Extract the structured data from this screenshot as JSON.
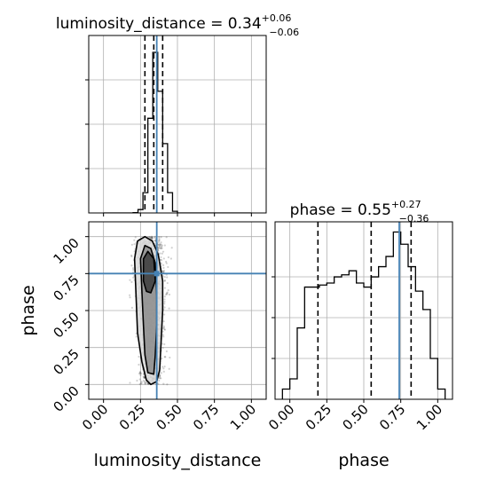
{
  "chart_data": [
    {
      "panel": "luminosity_distance-marginal",
      "type": "histogram",
      "title_param": "luminosity_distance",
      "title_value": "0.34",
      "title_plus": "+0.06",
      "title_minus": "−0.06",
      "xlim": [
        -0.1,
        1.1
      ],
      "bin_edges": [
        0.0,
        0.0333,
        0.0667,
        0.1,
        0.1333,
        0.1667,
        0.2,
        0.2333,
        0.2667,
        0.3,
        0.3333,
        0.3667,
        0.4,
        0.4333,
        0.4667,
        0.5,
        0.5333,
        0.5667,
        0.6,
        0.6333,
        0.6667,
        0.7,
        0.7333,
        0.7667,
        0.8,
        0.8333,
        0.8667,
        0.9,
        0.9333,
        0.9667,
        1.0
      ],
      "counts": [
        0,
        0,
        0,
        0,
        0,
        0,
        0.002,
        0.02,
        0.12,
        0.56,
        0.95,
        0.72,
        0.41,
        0.12,
        0.01,
        0,
        0,
        0,
        0,
        0,
        0,
        0,
        0,
        0,
        0,
        0,
        0,
        0,
        0,
        0
      ],
      "ylim": [
        0,
        1.05
      ],
      "quantiles": [
        0.28,
        0.34,
        0.4
      ],
      "truth": 0.36
    },
    {
      "panel": "joint-2d",
      "type": "scatter",
      "x_param": "luminosity_distance",
      "y_param": "phase",
      "xlabel": "luminosity_distance",
      "ylabel": "phase",
      "xlim": [
        -0.1,
        1.1
      ],
      "ylim": [
        -0.1,
        1.1
      ],
      "x_ticks": [
        "0.00",
        "0.25",
        "0.50",
        "0.75",
        "1.00"
      ],
      "y_ticks": [
        "0.00",
        "0.25",
        "0.50",
        "0.75",
        "1.00"
      ],
      "truth": [
        0.36,
        0.75
      ],
      "contours": [
        {
          "level": "outer",
          "points": [
            [
              0.29,
              0.03
            ],
            [
              0.26,
              0.15
            ],
            [
              0.23,
              0.35
            ],
            [
              0.22,
              0.6
            ],
            [
              0.21,
              0.85
            ],
            [
              0.23,
              0.97
            ],
            [
              0.28,
              1.0
            ],
            [
              0.33,
              0.97
            ],
            [
              0.37,
              0.88
            ],
            [
              0.4,
              0.7
            ],
            [
              0.4,
              0.5
            ],
            [
              0.39,
              0.3
            ],
            [
              0.38,
              0.1
            ],
            [
              0.36,
              0.02
            ],
            [
              0.32,
              0.0
            ]
          ]
        },
        {
          "level": "middle",
          "points": [
            [
              0.3,
              0.08
            ],
            [
              0.28,
              0.2
            ],
            [
              0.27,
              0.4
            ],
            [
              0.26,
              0.62
            ],
            [
              0.25,
              0.85
            ],
            [
              0.28,
              0.94
            ],
            [
              0.32,
              0.92
            ],
            [
              0.35,
              0.82
            ],
            [
              0.36,
              0.6
            ],
            [
              0.36,
              0.4
            ],
            [
              0.35,
              0.2
            ],
            [
              0.34,
              0.07
            ]
          ]
        },
        {
          "level": "inner",
          "points": [
            [
              0.27,
              0.7
            ],
            [
              0.27,
              0.85
            ],
            [
              0.3,
              0.9
            ],
            [
              0.34,
              0.85
            ],
            [
              0.35,
              0.7
            ],
            [
              0.32,
              0.62
            ],
            [
              0.29,
              0.63
            ]
          ]
        }
      ]
    },
    {
      "panel": "phase-marginal",
      "type": "histogram",
      "title_param": "phase",
      "title_value": "0.55",
      "title_plus": "+0.27",
      "title_minus": "−0.36",
      "xlabel": "phase",
      "xlim": [
        -0.1,
        1.1
      ],
      "x_ticks": [
        "0.00",
        "0.25",
        "0.50",
        "0.75",
        "1.00"
      ],
      "bin_edges": [
        -0.05,
        0.0,
        0.05,
        0.1,
        0.15,
        0.2,
        0.25,
        0.3,
        0.35,
        0.4,
        0.45,
        0.5,
        0.55,
        0.6,
        0.65,
        0.7,
        0.75,
        0.8,
        0.85,
        0.9,
        0.95,
        1.0,
        1.05
      ],
      "counts": [
        0.05,
        0.1,
        0.35,
        0.55,
        0.55,
        0.56,
        0.57,
        0.6,
        0.61,
        0.63,
        0.57,
        0.55,
        0.6,
        0.65,
        0.7,
        0.82,
        0.76,
        0.65,
        0.53,
        0.44,
        0.2,
        0.05
      ],
      "ylim": [
        0,
        0.87
      ],
      "quantiles": [
        0.19,
        0.55,
        0.82
      ],
      "truth": 0.74
    }
  ]
}
